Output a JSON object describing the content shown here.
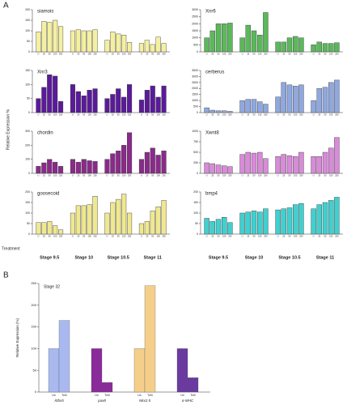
{
  "panel_labels": [
    "A",
    "B"
  ],
  "y_label": "Relative Expression %",
  "row_label": "Treatment",
  "stages": [
    "Stage 9.5",
    "Stage 10",
    "Stage 10.5",
    "Stage 11"
  ],
  "doses": [
    "U",
    "25",
    "50",
    "100",
    "250"
  ],
  "chart_data": [
    {
      "type": "grouped-bar",
      "title": "siamois",
      "color": "#f5f0a0",
      "ylim": [
        0,
        200
      ],
      "yticks": [
        0,
        50,
        100,
        150,
        200
      ],
      "values": [
        [
          95,
          145,
          140,
          150,
          120
        ],
        [
          100,
          105,
          100,
          100,
          105
        ],
        [
          55,
          95,
          85,
          80,
          45
        ],
        [
          40,
          55,
          35,
          70,
          40
        ]
      ]
    },
    {
      "type": "grouped-bar",
      "title": "Xnr3",
      "color": "#5a1a9a",
      "ylim": [
        0,
        150
      ],
      "yticks": [
        0,
        50,
        100,
        150
      ],
      "values": [
        [
          50,
          90,
          135,
          130,
          40
        ],
        [
          100,
          75,
          60,
          80,
          85
        ],
        [
          50,
          65,
          85,
          55,
          100
        ],
        [
          45,
          80,
          95,
          55,
          95
        ]
      ]
    },
    {
      "type": "grouped-bar",
      "title": "chordin",
      "color": "#8a2a8a",
      "ylim": [
        0,
        300
      ],
      "yticks": [
        0,
        100,
        200,
        300
      ],
      "values": [
        [
          50,
          75,
          100,
          80,
          50
        ],
        [
          100,
          80,
          100,
          90,
          85
        ],
        [
          100,
          140,
          160,
          200,
          290
        ],
        [
          100,
          150,
          180,
          130,
          160
        ]
      ]
    },
    {
      "type": "grouped-bar",
      "title": "goosecoid",
      "color": "#f0e890",
      "ylim": [
        0,
        200
      ],
      "yticks": [
        0,
        50,
        100,
        150,
        200
      ],
      "values": [
        [
          55,
          55,
          60,
          40,
          20
        ],
        [
          100,
          135,
          135,
          140,
          180
        ],
        [
          100,
          150,
          165,
          190,
          100
        ],
        [
          50,
          60,
          110,
          130,
          160
        ]
      ]
    },
    {
      "type": "grouped-bar",
      "title": "Xnr6",
      "color": "#5bb85b",
      "ylim": [
        0,
        3000
      ],
      "yticks": [
        0,
        500,
        1000,
        1500,
        2000,
        2500,
        3000
      ],
      "values": [
        [
          1000,
          1500,
          2000,
          2000,
          2050
        ],
        [
          1000,
          1900,
          1500,
          1200,
          2800
        ],
        [
          700,
          700,
          1000,
          1100,
          1000
        ],
        [
          500,
          700,
          600,
          600,
          650
        ]
      ]
    },
    {
      "type": "grouped-bar",
      "title": "cerberus",
      "color": "#8fa8e0",
      "ylim": [
        0,
        3500
      ],
      "yticks": [
        0,
        500,
        1000,
        1500,
        2000,
        2500,
        3000,
        3500
      ],
      "values": [
        [
          400,
          200,
          150,
          150,
          100
        ],
        [
          1000,
          1100,
          1100,
          900,
          700
        ],
        [
          1300,
          2500,
          2300,
          2200,
          2300
        ],
        [
          1000,
          2000,
          2100,
          2500,
          2700
        ]
      ]
    },
    {
      "type": "grouped-bar",
      "title": "Xwnt8",
      "color": "#d98ad9",
      "ylim": [
        0,
        1000
      ],
      "yticks": [
        0,
        250,
        500,
        750,
        1000
      ],
      "values": [
        [
          250,
          230,
          200,
          180,
          160
        ],
        [
          450,
          500,
          480,
          500,
          350
        ],
        [
          400,
          450,
          420,
          400,
          500
        ],
        [
          400,
          400,
          500,
          600,
          850
        ]
      ]
    },
    {
      "type": "grouped-bar",
      "title": "bmp4",
      "color": "#40d0d0",
      "ylim": [
        0,
        200
      ],
      "yticks": [
        0,
        50,
        100,
        150,
        200
      ],
      "values": [
        [
          75,
          60,
          70,
          80,
          55
        ],
        [
          100,
          105,
          110,
          105,
          120
        ],
        [
          115,
          120,
          125,
          140,
          145
        ],
        [
          120,
          140,
          150,
          160,
          175
        ]
      ]
    },
    {
      "type": "pair-bar",
      "title": "Stage 32",
      "y_label": "Relative Expression (%)",
      "ylim": [
        0,
        250
      ],
      "yticks": [
        0,
        50,
        100,
        150,
        200,
        250
      ],
      "bar_labels": [
        "Un",
        "Tcf4"
      ],
      "groups": [
        {
          "name": "Xtbx5",
          "color": "#a9b9f0",
          "values": [
            100,
            165
          ]
        },
        {
          "name": "pax8",
          "color": "#8b2a9a",
          "values": [
            100,
            22
          ]
        },
        {
          "name": "Nkx2.5",
          "color": "#f5cf8a",
          "values": [
            100,
            245
          ]
        },
        {
          "name": "α-MHC",
          "color": "#6a3aa0",
          "values": [
            100,
            33
          ]
        }
      ]
    }
  ]
}
